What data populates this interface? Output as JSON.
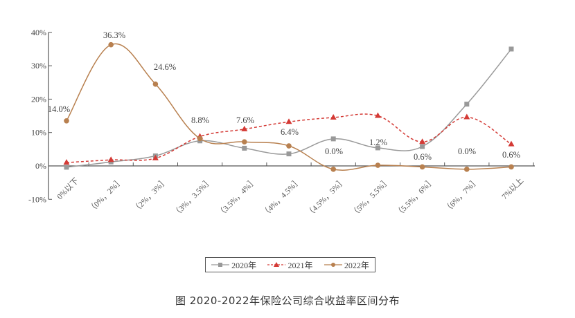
{
  "chart_data": {
    "type": "line",
    "title": "",
    "xlabel": "",
    "ylabel": "",
    "ylim": [
      -10,
      40
    ],
    "yticks": [
      "-10%",
      "0%",
      "10%",
      "20%",
      "30%",
      "40%"
    ],
    "ytick_values": [
      -10,
      0,
      10,
      20,
      30,
      40
    ],
    "categories": [
      "0%以下",
      "（0%，2%］",
      "（2%，3%］",
      "（3%，3.5%］",
      "（3.5%，4%］",
      "（4%，4.5%］",
      "（4.5%，5%］",
      "（5%，5.5%］",
      "（5.5%，6%］",
      "（6%，7%］",
      "7%以上"
    ],
    "series": [
      {
        "name": "2020年",
        "color": "#999999",
        "marker": "square",
        "dash": false,
        "values": [
          -0.4,
          1.2,
          3.0,
          7.5,
          5.3,
          3.6,
          8.1,
          5.4,
          5.8,
          18.5,
          35.0
        ]
      },
      {
        "name": "2021年",
        "color": "#d43a35",
        "marker": "triangle",
        "dash": true,
        "values": [
          1.0,
          1.8,
          2.3,
          8.8,
          11.0,
          13.2,
          14.5,
          15.0,
          7.2,
          14.6,
          6.5
        ]
      },
      {
        "name": "2022年",
        "color": "#b8804f",
        "marker": "circle",
        "dash": false,
        "values": [
          13.5,
          36.3,
          24.5,
          8.2,
          7.2,
          6.0,
          -1.0,
          0.2,
          -0.3,
          -1.0,
          -0.3
        ]
      }
    ],
    "annotations": [
      "14.0%",
      "36.3%",
      "24.6%",
      "8.8%",
      "7.6%",
      "6.4%",
      "0.0%",
      "1.2%",
      "0.6%",
      "0.0%",
      "0.6%"
    ],
    "legend_position": "bottom-center",
    "grid": false
  },
  "caption": "图 2020-2022年保险公司综合收益率区间分布"
}
